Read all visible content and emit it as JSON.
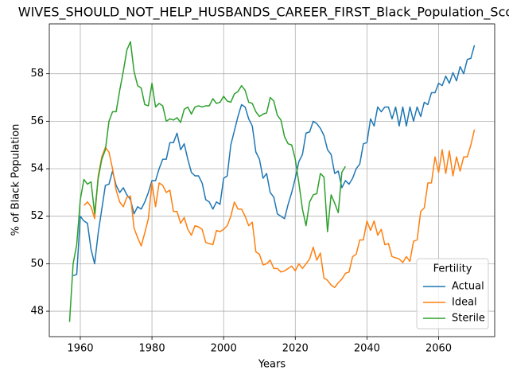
{
  "chart_data": {
    "type": "line",
    "title": "WIVES_SHOULD_NOT_HELP_HUSBANDS_CAREER_FIRST_Black_Population_Score",
    "x_label": "Years",
    "y_label": "% of Black Population",
    "x": [
      1957,
      1958,
      1959,
      1960,
      1961,
      1962,
      1963,
      1964,
      1965,
      1966,
      1967,
      1968,
      1969,
      1970,
      1971,
      1972,
      1973,
      1974,
      1975,
      1976,
      1977,
      1978,
      1979,
      1980,
      1981,
      1982,
      1983,
      1984,
      1985,
      1986,
      1987,
      1988,
      1989,
      1990,
      1991,
      1992,
      1993,
      1994,
      1995,
      1996,
      1997,
      1998,
      1999,
      2000,
      2001,
      2002,
      2003,
      2004,
      2005,
      2006,
      2007,
      2008,
      2009,
      2010,
      2011,
      2012,
      2013,
      2014,
      2015,
      2016,
      2017,
      2018,
      2019,
      2020,
      2021,
      2022,
      2023,
      2024,
      2025,
      2026,
      2027,
      2028,
      2029,
      2030,
      2031,
      2032,
      2033,
      2034,
      2035,
      2036,
      2037,
      2038,
      2039,
      2040,
      2041,
      2042,
      2043,
      2044,
      2045,
      2046,
      2047,
      2048,
      2049,
      2050,
      2051,
      2052,
      2053,
      2054,
      2055,
      2056,
      2057,
      2058,
      2059,
      2060,
      2061,
      2062,
      2063,
      2064,
      2065,
      2066,
      2067,
      2068,
      2069,
      2070
    ],
    "series": [
      {
        "name": "Actual",
        "color": "#1f77b4",
        "values": [
          null,
          49.5,
          49.55,
          52.0,
          51.8,
          51.7,
          50.6,
          50.0,
          51.3,
          52.3,
          53.3,
          53.35,
          53.9,
          53.3,
          53.0,
          53.2,
          52.9,
          52.7,
          52.1,
          52.4,
          52.3,
          52.6,
          53.0,
          53.5,
          53.5,
          54.0,
          54.4,
          54.4,
          55.1,
          55.1,
          55.5,
          54.8,
          55.05,
          54.4,
          53.85,
          53.7,
          53.7,
          53.4,
          52.7,
          52.6,
          52.3,
          52.6,
          52.5,
          53.6,
          53.7,
          55.0,
          55.6,
          56.2,
          56.7,
          56.6,
          56.1,
          55.8,
          54.7,
          54.4,
          53.6,
          53.8,
          53.0,
          52.8,
          52.1,
          52.0,
          51.9,
          52.5,
          53.0,
          53.6,
          54.3,
          54.6,
          55.5,
          55.55,
          56.0,
          55.9,
          55.7,
          55.4,
          54.8,
          54.6,
          53.8,
          53.9,
          53.2,
          53.5,
          53.35,
          53.6,
          54.0,
          54.2,
          55.05,
          55.1,
          56.1,
          55.8,
          56.6,
          56.4,
          56.6,
          56.6,
          56.1,
          56.6,
          55.8,
          56.6,
          55.8,
          56.6,
          56.0,
          56.6,
          56.2,
          56.8,
          56.7,
          57.2,
          57.2,
          57.6,
          57.5,
          57.9,
          57.6,
          58.05,
          57.7,
          58.3,
          58.0,
          58.6,
          58.65,
          59.2
        ]
      },
      {
        "name": "Ideal",
        "color": "#ff7f0e",
        "values": [
          null,
          null,
          null,
          null,
          52.45,
          52.6,
          52.4,
          51.9,
          53.7,
          54.5,
          54.9,
          54.7,
          54.0,
          53.1,
          52.6,
          52.4,
          52.8,
          52.85,
          51.5,
          51.1,
          50.75,
          51.3,
          51.9,
          53.4,
          52.4,
          53.4,
          53.3,
          53.0,
          53.1,
          52.2,
          52.2,
          51.7,
          51.95,
          51.45,
          51.2,
          51.6,
          51.55,
          51.45,
          50.9,
          50.85,
          50.8,
          51.4,
          51.35,
          51.45,
          51.6,
          52.0,
          52.6,
          52.3,
          52.3,
          52.0,
          51.6,
          51.75,
          50.5,
          50.4,
          49.95,
          50.0,
          50.15,
          49.8,
          49.8,
          49.65,
          49.7,
          49.8,
          49.9,
          49.7,
          50.0,
          49.8,
          50.0,
          50.2,
          50.7,
          50.15,
          50.45,
          49.4,
          49.3,
          49.1,
          49.0,
          49.2,
          49.35,
          49.6,
          49.65,
          50.3,
          50.4,
          51.0,
          51.0,
          51.8,
          51.4,
          51.8,
          51.2,
          51.45,
          50.8,
          50.85,
          50.3,
          50.25,
          50.2,
          50.05,
          50.3,
          50.1,
          50.95,
          51.0,
          52.2,
          52.35,
          53.4,
          53.4,
          54.5,
          53.85,
          54.8,
          53.8,
          54.75,
          53.7,
          54.5,
          53.9,
          54.5,
          54.5,
          55.0,
          55.65
        ]
      },
      {
        "name": "Sterile",
        "color": "#2ca02c",
        "values": [
          47.55,
          50.0,
          50.8,
          52.7,
          53.55,
          53.35,
          53.45,
          52.1,
          53.6,
          54.4,
          54.8,
          56.0,
          56.4,
          56.4,
          57.3,
          58.1,
          59.0,
          59.35,
          58.1,
          57.5,
          57.4,
          56.7,
          56.65,
          57.6,
          56.6,
          56.75,
          56.65,
          56.0,
          56.1,
          56.05,
          56.15,
          55.95,
          56.5,
          56.6,
          56.3,
          56.6,
          56.65,
          56.6,
          56.65,
          56.65,
          56.95,
          56.75,
          56.8,
          57.05,
          56.85,
          56.8,
          57.15,
          57.25,
          57.5,
          57.3,
          56.8,
          56.75,
          56.4,
          56.2,
          56.3,
          56.35,
          57.0,
          56.85,
          56.25,
          56.05,
          55.35,
          55.05,
          55.0,
          54.4,
          53.4,
          52.3,
          51.6,
          52.6,
          52.9,
          52.95,
          53.8,
          53.65,
          51.35,
          52.9,
          52.55,
          52.15,
          53.85,
          54.1,
          null,
          null,
          null,
          null,
          null,
          null,
          null,
          null,
          null,
          null,
          null,
          null,
          null,
          null,
          null,
          null,
          null,
          null,
          null,
          null,
          null,
          null,
          null,
          null,
          null,
          null,
          null,
          null,
          null,
          null,
          null,
          null,
          null,
          null,
          null,
          null
        ]
      }
    ],
    "legend_title": "Fertility",
    "legend_position": "lower right",
    "xlim": [
      1951.35,
      2075.65
    ],
    "xticks": [
      1960,
      1980,
      2000,
      2020,
      2040,
      2060
    ],
    "ylim": [
      46.93,
      60.1
    ],
    "yticks": [
      48,
      50,
      52,
      54,
      56,
      58
    ],
    "grid": true
  }
}
